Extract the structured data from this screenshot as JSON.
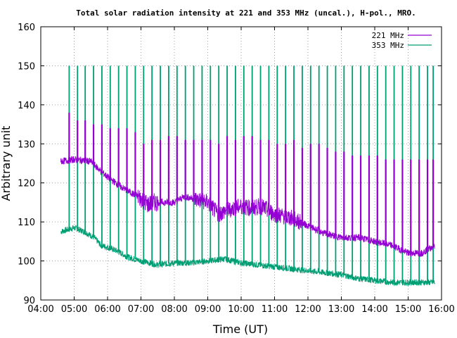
{
  "chart_data": {
    "type": "line",
    "title": "Total solar radiation intensity at 221 and 353 MHz (uncal.), H-pol., MRO.",
    "xlabel": "Time (UT)",
    "ylabel": "Arbitrary unit",
    "x_tick_labels": [
      "04:00",
      "05:00",
      "06:00",
      "07:00",
      "08:00",
      "09:00",
      "10:00",
      "11:00",
      "12:00",
      "13:00",
      "14:00",
      "15:00",
      "16:00"
    ],
    "y_tick_labels": [
      "90",
      "100",
      "110",
      "120",
      "130",
      "140",
      "150",
      "160"
    ],
    "xlim_hours": [
      4,
      16
    ],
    "ylim": [
      90,
      160
    ],
    "grid": true,
    "legend_position": "top-right",
    "series": [
      {
        "name": "221 MHz",
        "color": "#9400d3",
        "baseline": [
          [
            4.6,
            125.5
          ],
          [
            5.0,
            126
          ],
          [
            5.5,
            125.5
          ],
          [
            5.8,
            123
          ],
          [
            6.0,
            121.5
          ],
          [
            6.4,
            119
          ],
          [
            6.8,
            117
          ],
          [
            7.0,
            116
          ],
          [
            7.2,
            114.5
          ],
          [
            7.4,
            115
          ],
          [
            8.0,
            115
          ],
          [
            8.3,
            116.5
          ],
          [
            8.8,
            115.5
          ],
          [
            9.0,
            115
          ],
          [
            9.3,
            112
          ],
          [
            9.6,
            113
          ],
          [
            10.0,
            114
          ],
          [
            10.3,
            113.5
          ],
          [
            10.6,
            114
          ],
          [
            11.0,
            112
          ],
          [
            11.5,
            111
          ],
          [
            12.0,
            109
          ],
          [
            12.5,
            107
          ],
          [
            13.0,
            106
          ],
          [
            13.5,
            106
          ],
          [
            14.0,
            105
          ],
          [
            14.5,
            104
          ],
          [
            15.0,
            102
          ],
          [
            15.4,
            102
          ],
          [
            15.8,
            104
          ]
        ],
        "spike_highs": [
          [
            4.67,
            125
          ],
          [
            4.85,
            138
          ],
          [
            5.1,
            136
          ],
          [
            5.33,
            136
          ],
          [
            5.58,
            135
          ],
          [
            5.83,
            135
          ],
          [
            6.08,
            134
          ],
          [
            6.33,
            134
          ],
          [
            6.58,
            134
          ],
          [
            6.83,
            133
          ],
          [
            7.08,
            130
          ],
          [
            7.33,
            131
          ],
          [
            7.58,
            131
          ],
          [
            7.83,
            132
          ],
          [
            8.08,
            132
          ],
          [
            8.33,
            131
          ],
          [
            8.58,
            131
          ],
          [
            8.83,
            131
          ],
          [
            9.08,
            131
          ],
          [
            9.33,
            130
          ],
          [
            9.58,
            132
          ],
          [
            9.83,
            131
          ],
          [
            10.08,
            132
          ],
          [
            10.33,
            132
          ],
          [
            10.58,
            131
          ],
          [
            10.83,
            131
          ],
          [
            11.08,
            130
          ],
          [
            11.33,
            130
          ],
          [
            11.58,
            131
          ],
          [
            11.83,
            129
          ],
          [
            12.08,
            130
          ],
          [
            12.33,
            130
          ],
          [
            12.58,
            129
          ],
          [
            12.83,
            128
          ],
          [
            13.08,
            128
          ],
          [
            13.33,
            127
          ],
          [
            13.58,
            127
          ],
          [
            13.83,
            127
          ],
          [
            14.08,
            127
          ],
          [
            14.33,
            126
          ],
          [
            14.58,
            126
          ],
          [
            14.83,
            126
          ],
          [
            15.08,
            126
          ],
          [
            15.33,
            126
          ],
          [
            15.58,
            126
          ],
          [
            15.75,
            126
          ]
        ]
      },
      {
        "name": "353 MHz",
        "color": "#009e73",
        "baseline": [
          [
            4.6,
            107.5
          ],
          [
            5.0,
            108.5
          ],
          [
            5.3,
            107.5
          ],
          [
            5.6,
            106
          ],
          [
            5.8,
            104
          ],
          [
            6.0,
            103.5
          ],
          [
            6.3,
            102.5
          ],
          [
            6.6,
            101
          ],
          [
            7.0,
            100
          ],
          [
            7.5,
            99
          ],
          [
            8.0,
            99.5
          ],
          [
            8.5,
            99.5
          ],
          [
            9.0,
            100
          ],
          [
            9.5,
            100.5
          ],
          [
            10.0,
            99.5
          ],
          [
            10.5,
            99
          ],
          [
            11.0,
            98.5
          ],
          [
            11.5,
            98
          ],
          [
            12.0,
            97.5
          ],
          [
            12.5,
            97
          ],
          [
            13.0,
            96.5
          ],
          [
            13.5,
            95.5
          ],
          [
            14.0,
            95
          ],
          [
            14.5,
            94.5
          ],
          [
            15.0,
            94.5
          ],
          [
            15.5,
            94.5
          ],
          [
            15.8,
            94.5
          ]
        ],
        "spike_highs": [
          [
            4.85,
            150
          ],
          [
            5.1,
            150
          ],
          [
            5.33,
            150
          ],
          [
            5.58,
            150
          ],
          [
            5.83,
            150
          ],
          [
            6.08,
            150
          ],
          [
            6.33,
            150
          ],
          [
            6.58,
            150
          ],
          [
            6.83,
            150
          ],
          [
            7.08,
            150
          ],
          [
            7.33,
            150
          ],
          [
            7.58,
            150
          ],
          [
            7.83,
            150
          ],
          [
            8.08,
            150
          ],
          [
            8.33,
            150
          ],
          [
            8.58,
            150
          ],
          [
            8.83,
            150
          ],
          [
            9.08,
            150
          ],
          [
            9.33,
            150
          ],
          [
            9.58,
            150
          ],
          [
            9.83,
            150
          ],
          [
            10.08,
            150
          ],
          [
            10.33,
            150
          ],
          [
            10.58,
            150
          ],
          [
            10.83,
            150
          ],
          [
            11.08,
            150
          ],
          [
            11.33,
            150
          ],
          [
            11.58,
            150
          ],
          [
            11.83,
            150
          ],
          [
            12.08,
            150
          ],
          [
            12.33,
            150
          ],
          [
            12.58,
            150
          ],
          [
            12.83,
            150
          ],
          [
            13.08,
            150
          ],
          [
            13.33,
            150
          ],
          [
            13.58,
            150
          ],
          [
            13.83,
            150
          ],
          [
            14.08,
            150
          ],
          [
            14.33,
            150
          ],
          [
            14.58,
            150
          ],
          [
            14.83,
            150
          ],
          [
            15.08,
            150
          ],
          [
            15.33,
            150
          ],
          [
            15.58,
            150
          ],
          [
            15.75,
            150
          ]
        ]
      }
    ]
  }
}
